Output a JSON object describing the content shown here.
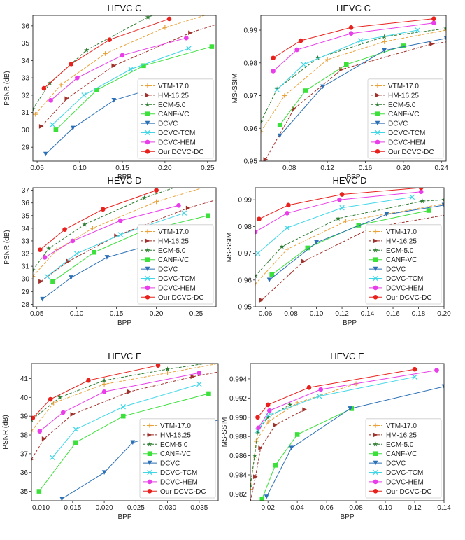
{
  "figure": {
    "description_label": "Rate-distortion curves"
  },
  "legend_labels": [
    "VTM-17.0",
    "HM-16.25",
    "ECM-5.0",
    "CANF-VC",
    "DCVC",
    "DCVC-TCM",
    "DCVC-HEM",
    "Our DCVC-DC"
  ],
  "series_styles": [
    {
      "name": "VTM-17.0",
      "color": "#e8a33c",
      "dash": "dash",
      "marker": "plus"
    },
    {
      "name": "HM-16.25",
      "color": "#a0302a",
      "dash": "dash",
      "marker": "tri-right"
    },
    {
      "name": "ECM-5.0",
      "color": "#2e7d32",
      "dash": "dash",
      "marker": "star"
    },
    {
      "name": "CANF-VC",
      "color": "#3be03b",
      "dash": "solid",
      "marker": "square"
    },
    {
      "name": "DCVC",
      "color": "#2b6fb5",
      "dash": "solid",
      "marker": "tri-down"
    },
    {
      "name": "DCVC-TCM",
      "color": "#3fd6e6",
      "dash": "solid",
      "marker": "x"
    },
    {
      "name": "DCVC-HEM",
      "color": "#e83de8",
      "dash": "solid",
      "marker": "circle"
    },
    {
      "name": "Our DCVC-DC",
      "color": "#e8211d",
      "dash": "solid",
      "marker": "circle"
    }
  ],
  "chart_data": [
    {
      "type": "line",
      "title": "HEVC C",
      "xlabel": "BPP",
      "ylabel": "PSNR (dB)",
      "xlim": [
        0.045,
        0.26
      ],
      "ylim": [
        28.2,
        36.6
      ],
      "xticks": [
        0.05,
        0.1,
        0.15,
        0.2,
        0.25
      ],
      "xtick_labels": [
        "0.05",
        "0.10",
        "0.15",
        "0.20",
        "0.25"
      ],
      "yticks": [
        29,
        30,
        31,
        32,
        33,
        34,
        35,
        36
      ],
      "ytick_labels": [
        "29",
        "30",
        "31",
        "32",
        "33",
        "34",
        "35",
        "36"
      ],
      "legend_pos": "bottom-right",
      "series": [
        {
          "name": "VTM-17.0",
          "x": [
            0.048,
            0.078,
            0.13,
            0.2,
            0.26
          ],
          "y": [
            30.9,
            32.6,
            34.4,
            35.9,
            36.8
          ]
        },
        {
          "name": "HM-16.25",
          "x": [
            0.055,
            0.085,
            0.14,
            0.23,
            0.28
          ],
          "y": [
            30.2,
            31.8,
            33.7,
            35.6,
            36.4
          ]
        },
        {
          "name": "ECM-5.0",
          "x": [
            0.045,
            0.065,
            0.108,
            0.18,
            0.24
          ],
          "y": [
            31.2,
            32.7,
            34.6,
            36.5,
            37.5
          ]
        },
        {
          "name": "CANF-VC",
          "x": [
            0.072,
            0.12,
            0.175,
            0.255
          ],
          "y": [
            30.0,
            32.3,
            33.7,
            34.8
          ]
        },
        {
          "name": "DCVC",
          "x": [
            0.06,
            0.092,
            0.14,
            0.2
          ],
          "y": [
            28.6,
            30.1,
            31.7,
            32.6
          ]
        },
        {
          "name": "DCVC-TCM",
          "x": [
            0.068,
            0.105,
            0.16,
            0.228
          ],
          "y": [
            30.3,
            32.0,
            33.5,
            34.7
          ]
        },
        {
          "name": "DCVC-HEM",
          "x": [
            0.066,
            0.097,
            0.15,
            0.225
          ],
          "y": [
            31.7,
            33.0,
            34.3,
            35.3
          ]
        },
        {
          "name": "Our DCVC-DC",
          "x": [
            0.058,
            0.09,
            0.135,
            0.205
          ],
          "y": [
            32.4,
            33.8,
            35.2,
            36.4
          ]
        }
      ]
    },
    {
      "type": "line",
      "title": "HEVC C",
      "xlabel": "BPP",
      "ylabel": "MS-SSIM",
      "xlim": [
        0.05,
        0.245
      ],
      "ylim": [
        0.95,
        0.9945
      ],
      "xticks": [
        0.08,
        0.12,
        0.16,
        0.2,
        0.24
      ],
      "xtick_labels": [
        "0.08",
        "0.12",
        "0.16",
        "0.20",
        "0.24"
      ],
      "yticks": [
        0.95,
        0.96,
        0.97,
        0.98,
        0.99
      ],
      "ytick_labels": [
        "0.95",
        "0.96",
        "0.97",
        "0.98",
        "0.99"
      ],
      "legend_pos": "bottom-right",
      "series": [
        {
          "name": "VTM-17.0",
          "x": [
            0.05,
            0.075,
            0.12,
            0.18,
            0.245
          ],
          "y": [
            0.959,
            0.97,
            0.981,
            0.9865,
            0.99
          ]
        },
        {
          "name": "HM-16.25",
          "x": [
            0.055,
            0.085,
            0.135,
            0.23,
            0.26
          ],
          "y": [
            0.9505,
            0.966,
            0.978,
            0.9858,
            0.987
          ]
        },
        {
          "name": "ECM-5.0",
          "x": [
            0.05,
            0.067,
            0.11,
            0.18,
            0.245
          ],
          "y": [
            0.962,
            0.972,
            0.9815,
            0.988,
            0.9905
          ]
        },
        {
          "name": "CANF-VC",
          "x": [
            0.07,
            0.097,
            0.14,
            0.2
          ],
          "y": [
            0.961,
            0.9715,
            0.9795,
            0.9852
          ]
        },
        {
          "name": "DCVC",
          "x": [
            0.07,
            0.115,
            0.18,
            0.245
          ],
          "y": [
            0.9577,
            0.9727,
            0.9838,
            0.9875
          ]
        },
        {
          "name": "DCVC-TCM",
          "x": [
            0.067,
            0.095,
            0.155,
            0.215
          ],
          "y": [
            0.9718,
            0.9795,
            0.9868,
            0.99
          ]
        },
        {
          "name": "DCVC-HEM",
          "x": [
            0.063,
            0.088,
            0.145,
            0.232
          ],
          "y": [
            0.9775,
            0.984,
            0.989,
            0.9922
          ]
        },
        {
          "name": "Our DCVC-DC",
          "x": [
            0.063,
            0.092,
            0.145,
            0.232
          ],
          "y": [
            0.9815,
            0.9868,
            0.9908,
            0.9935
          ]
        }
      ]
    },
    {
      "type": "line",
      "title": "HEVC D",
      "xlabel": "BPP",
      "ylabel": "PSNR (dB)",
      "xlim": [
        0.045,
        0.275
      ],
      "ylim": [
        27.8,
        37.2
      ],
      "xticks": [
        0.05,
        0.1,
        0.15,
        0.2,
        0.25
      ],
      "xtick_labels": [
        "0.05",
        "0.10",
        "0.15",
        "0.20",
        "0.25"
      ],
      "yticks": [
        28,
        29,
        30,
        31,
        32,
        33,
        34,
        35,
        36,
        37
      ],
      "ytick_labels": [
        "28",
        "29",
        "30",
        "31",
        "32",
        "33",
        "34",
        "35",
        "36",
        "37"
      ],
      "legend_pos": "bottom-right",
      "series": [
        {
          "name": "VTM-17.0",
          "x": [
            0.045,
            0.075,
            0.12,
            0.2,
            0.28
          ],
          "y": [
            30.2,
            32.3,
            34.0,
            36.1,
            37.6
          ]
        },
        {
          "name": "HM-16.25",
          "x": [
            0.055,
            0.09,
            0.15,
            0.24,
            0.3
          ],
          "y": [
            29.8,
            31.4,
            33.4,
            35.6,
            36.7
          ]
        },
        {
          "name": "ECM-5.0",
          "x": [
            0.045,
            0.065,
            0.11,
            0.185,
            0.25
          ],
          "y": [
            30.7,
            32.4,
            34.3,
            36.4,
            37.8
          ]
        },
        {
          "name": "CANF-VC",
          "x": [
            0.07,
            0.122,
            0.18,
            0.265
          ],
          "y": [
            29.8,
            32.1,
            33.7,
            35.0
          ]
        },
        {
          "name": "DCVC",
          "x": [
            0.057,
            0.093,
            0.138,
            0.205
          ],
          "y": [
            28.4,
            30.1,
            31.7,
            32.9
          ]
        },
        {
          "name": "DCVC-TCM",
          "x": [
            0.063,
            0.1,
            0.155,
            0.235
          ],
          "y": [
            30.2,
            32.0,
            33.5,
            35.2
          ]
        },
        {
          "name": "DCVC-HEM",
          "x": [
            0.06,
            0.095,
            0.155,
            0.228
          ],
          "y": [
            31.7,
            33.0,
            34.6,
            35.8
          ]
        },
        {
          "name": "Our DCVC-DC",
          "x": [
            0.054,
            0.085,
            0.133,
            0.2
          ],
          "y": [
            32.3,
            33.9,
            35.5,
            37.0
          ]
        }
      ]
    },
    {
      "type": "line",
      "title": "HEVC D",
      "xlabel": "BPP",
      "ylabel": "MS-SSIM",
      "xlim": [
        0.052,
        0.2
      ],
      "ylim": [
        0.95,
        0.9945
      ],
      "xticks": [
        0.06,
        0.08,
        0.1,
        0.12,
        0.14,
        0.16,
        0.18,
        0.2
      ],
      "xtick_labels": [
        "0.06",
        "0.08",
        "0.10",
        "0.12",
        "0.14",
        "0.16",
        "0.18",
        "0.20"
      ],
      "yticks": [
        0.95,
        0.96,
        0.97,
        0.98,
        0.99
      ],
      "ytick_labels": [
        "0.95",
        "0.96",
        "0.97",
        "0.98",
        "0.99"
      ],
      "legend_pos": "bottom-right",
      "series": [
        {
          "name": "VTM-17.0",
          "x": [
            0.052,
            0.077,
            0.123,
            0.2
          ],
          "y": [
            0.9585,
            0.9715,
            0.982,
            0.9885
          ]
        },
        {
          "name": "HM-16.25",
          "x": [
            0.057,
            0.09,
            0.143,
            0.21
          ],
          "y": [
            0.9525,
            0.967,
            0.9795,
            0.985
          ]
        },
        {
          "name": "ECM-5.0",
          "x": [
            0.052,
            0.073,
            0.117,
            0.183,
            0.2
          ],
          "y": [
            0.9615,
            0.9725,
            0.983,
            0.9895,
            0.99
          ]
        },
        {
          "name": "CANF-VC",
          "x": [
            0.065,
            0.093,
            0.133,
            0.188
          ],
          "y": [
            0.962,
            0.972,
            0.9805,
            0.986
          ]
        },
        {
          "name": "DCVC",
          "x": [
            0.063,
            0.1,
            0.155,
            0.2
          ],
          "y": [
            0.96,
            0.974,
            0.9845,
            0.988
          ]
        },
        {
          "name": "DCVC-TCM",
          "x": [
            0.054,
            0.077,
            0.12,
            0.175
          ],
          "y": [
            0.97,
            0.9795,
            0.987,
            0.991
          ]
        },
        {
          "name": "DCVC-HEM",
          "x": [
            0.052,
            0.077,
            0.118,
            0.182
          ],
          "y": [
            0.978,
            0.985,
            0.99,
            0.993
          ]
        },
        {
          "name": "Our DCVC-DC",
          "x": [
            0.055,
            0.078,
            0.12,
            0.182
          ],
          "y": [
            0.9828,
            0.988,
            0.992,
            0.9945
          ]
        }
      ]
    },
    {
      "type": "line",
      "title": "HEVC E",
      "xlabel": "BPP",
      "ylabel": "PSNR (dB)",
      "xlim": [
        0.0085,
        0.038
      ],
      "ylim": [
        34.5,
        41.8
      ],
      "xticks": [
        0.01,
        0.015,
        0.02,
        0.025,
        0.03,
        0.035
      ],
      "xtick_labels": [
        "0.010",
        "0.015",
        "0.020",
        "0.025",
        "0.030",
        "0.035"
      ],
      "yticks": [
        35,
        36,
        37,
        38,
        39,
        40,
        41
      ],
      "ytick_labels": [
        "35",
        "36",
        "37",
        "38",
        "39",
        "40",
        "41"
      ],
      "legend_pos": "bottom-right",
      "series": [
        {
          "name": "VTM-17.0",
          "x": [
            0.0085,
            0.012,
            0.02,
            0.03,
            0.038
          ],
          "y": [
            38.2,
            39.7,
            40.7,
            41.3,
            41.8
          ]
        },
        {
          "name": "HM-16.25",
          "x": [
            0.0085,
            0.0105,
            0.015,
            0.024,
            0.034,
            0.042
          ],
          "y": [
            36.7,
            37.8,
            39.1,
            40.3,
            41.1,
            41.6
          ]
        },
        {
          "name": "ECM-5.0",
          "x": [
            0.0085,
            0.013,
            0.02,
            0.03,
            0.038
          ],
          "y": [
            38.8,
            40.0,
            40.9,
            41.5,
            41.9
          ]
        },
        {
          "name": "CANF-VC",
          "x": [
            0.0097,
            0.0155,
            0.023,
            0.0365
          ],
          "y": [
            35.0,
            37.6,
            39.0,
            40.2
          ]
        },
        {
          "name": "DCVC",
          "x": [
            0.0133,
            0.02,
            0.0245,
            0.036,
            0.04
          ],
          "y": [
            34.6,
            36.0,
            37.6,
            38.6,
            39.0
          ]
        },
        {
          "name": "DCVC-TCM",
          "x": [
            0.0118,
            0.0155,
            0.023,
            0.035
          ],
          "y": [
            36.8,
            38.3,
            39.5,
            40.7
          ]
        },
        {
          "name": "DCVC-HEM",
          "x": [
            0.0098,
            0.0135,
            0.02,
            0.035
          ],
          "y": [
            38.2,
            39.2,
            40.3,
            41.3
          ]
        },
        {
          "name": "Our DCVC-DC",
          "x": [
            0.0087,
            0.0115,
            0.0175,
            0.0285
          ],
          "y": [
            38.9,
            39.9,
            40.9,
            41.7
          ]
        }
      ]
    },
    {
      "type": "line",
      "title": "HEVC E",
      "xlabel": "BPP",
      "ylabel": "MS-SSIM",
      "xlim": [
        0.008,
        0.14
      ],
      "ylim": [
        0.9813,
        0.9956
      ],
      "xticks": [
        0.02,
        0.04,
        0.06,
        0.08,
        0.1,
        0.12,
        0.14
      ],
      "xtick_labels": [
        "0.02",
        "0.04",
        "0.06",
        "0.08",
        "0.10",
        "0.12",
        "0.14"
      ],
      "yticks": [
        0.982,
        0.984,
        0.986,
        0.988,
        0.99,
        0.992,
        0.994
      ],
      "ytick_labels": [
        "0.982",
        "0.984",
        "0.986",
        "0.988",
        "0.990",
        "0.992",
        "0.994"
      ],
      "legend_pos": "bottom-right",
      "series": [
        {
          "name": "VTM-17.0",
          "x": [
            0.008,
            0.012,
            0.02,
            0.04,
            0.08
          ],
          "y": [
            0.9825,
            0.9875,
            0.9895,
            0.9915,
            0.9935
          ]
        },
        {
          "name": "HM-16.25",
          "x": [
            0.008,
            0.0115,
            0.015,
            0.025,
            0.045
          ],
          "y": [
            0.9812,
            0.9838,
            0.9868,
            0.9892,
            0.9908
          ]
        },
        {
          "name": "ECM-5.0",
          "x": [
            0.008,
            0.011,
            0.013,
            0.02,
            0.035
          ],
          "y": [
            0.9829,
            0.986,
            0.9885,
            0.99,
            0.9913
          ]
        },
        {
          "name": "CANF-VC",
          "x": [
            0.016,
            0.025,
            0.04,
            0.077
          ],
          "y": [
            0.9815,
            0.985,
            0.9882,
            0.9909
          ]
        },
        {
          "name": "DCVC",
          "x": [
            0.019,
            0.036,
            0.076,
            0.14
          ],
          "y": [
            0.9817,
            0.9868,
            0.9909,
            0.9932
          ]
        },
        {
          "name": "DCVC-TCM",
          "x": [
            0.013,
            0.02,
            0.055,
            0.12
          ],
          "y": [
            0.9886,
            0.9902,
            0.9922,
            0.9942
          ]
        },
        {
          "name": "DCVC-HEM",
          "x": [
            0.0135,
            0.021,
            0.056,
            0.135
          ],
          "y": [
            0.9889,
            0.9907,
            0.9929,
            0.9949
          ]
        },
        {
          "name": "Our DCVC-DC",
          "x": [
            0.013,
            0.02,
            0.048,
            0.12
          ],
          "y": [
            0.99,
            0.9913,
            0.9931,
            0.995
          ]
        }
      ]
    }
  ]
}
